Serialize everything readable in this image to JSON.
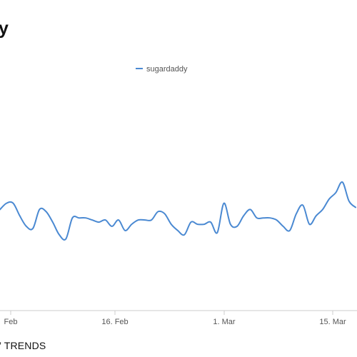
{
  "page": {
    "title_fragment": "y",
    "footer_fragment": "TRENDS"
  },
  "colors": {
    "series": "#4a89d2",
    "axis": "#cccccc",
    "text": "#555555"
  },
  "chart_data": {
    "type": "line",
    "title": "",
    "xlabel": "",
    "ylabel": "",
    "x_tick_labels": [
      "Feb",
      "16. Feb",
      "1. Mar",
      "15. Mar"
    ],
    "legend": [
      "sugardaddy"
    ],
    "legend_position": "top-center",
    "grid": false,
    "series": [
      {
        "name": "sugardaddy",
        "values": [
          48,
          51,
          51,
          45,
          40,
          39,
          48,
          47,
          42,
          36,
          34,
          44,
          44,
          44,
          43,
          42,
          43,
          40,
          43,
          38,
          41,
          43,
          43,
          43,
          47,
          46,
          41,
          38,
          36,
          42,
          41,
          41,
          42,
          37,
          51,
          41,
          40,
          45,
          48,
          44,
          44,
          44,
          43,
          40,
          38,
          46,
          50,
          41,
          45,
          48,
          53,
          56,
          61,
          52,
          49
        ]
      }
    ]
  }
}
